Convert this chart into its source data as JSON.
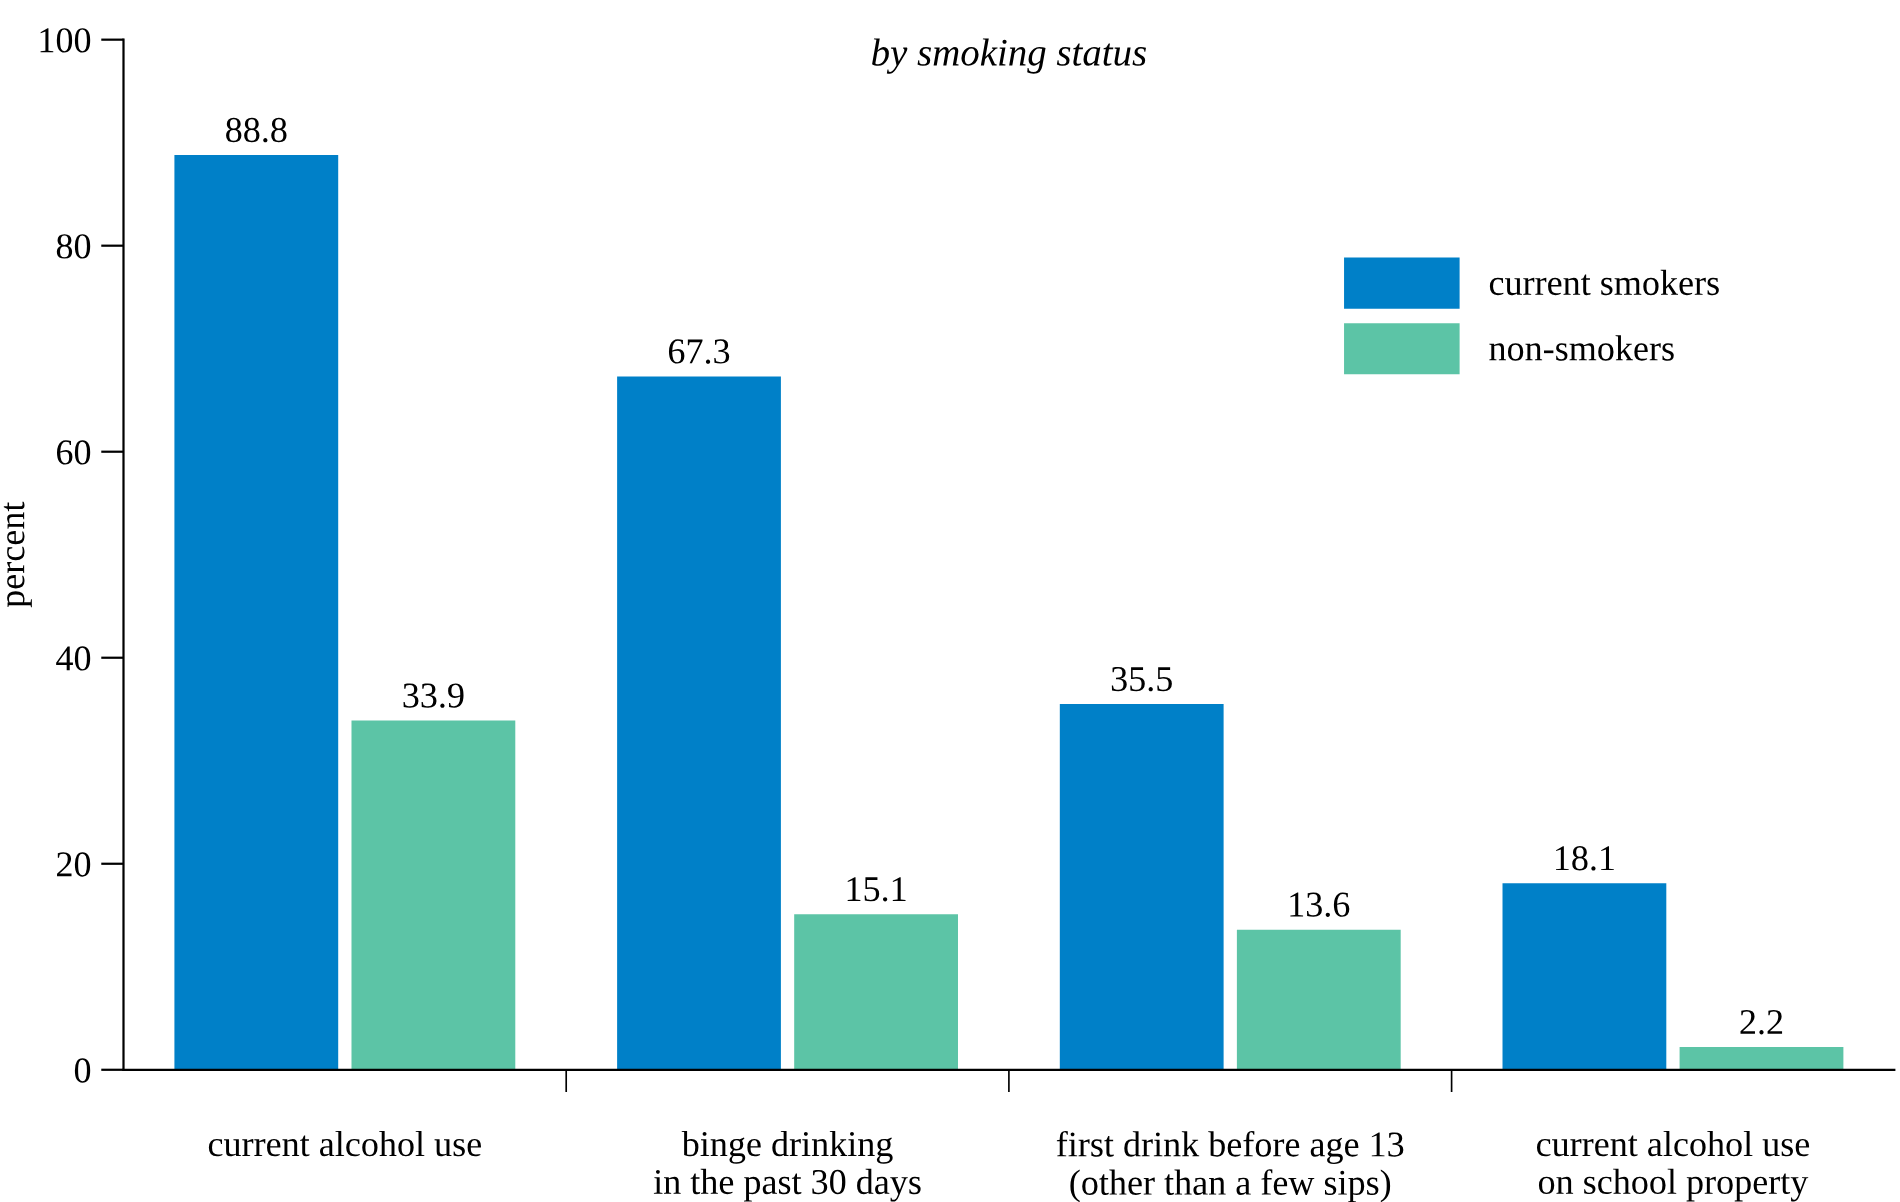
{
  "chart_data": {
    "type": "bar",
    "title": "by smoking status",
    "ylabel": "percent",
    "categories": [
      "current alcohol use",
      "binge drinking\nin the past 30 days",
      "first drink before age 13\n(other than a few sips)",
      "current alcohol use\non school property"
    ],
    "series": [
      {
        "name": "current smokers",
        "color": "#0080c8",
        "values": [
          88.8,
          67.3,
          35.5,
          18.1
        ]
      },
      {
        "name": "non-smokers",
        "color": "#5cc4a6",
        "values": [
          33.9,
          15.1,
          13.6,
          2.2
        ]
      }
    ],
    "ylim": [
      0,
      100
    ],
    "yticks": [
      0,
      20,
      40,
      60,
      80,
      100
    ],
    "data_labels": true,
    "legend": "top right",
    "grid": false
  }
}
